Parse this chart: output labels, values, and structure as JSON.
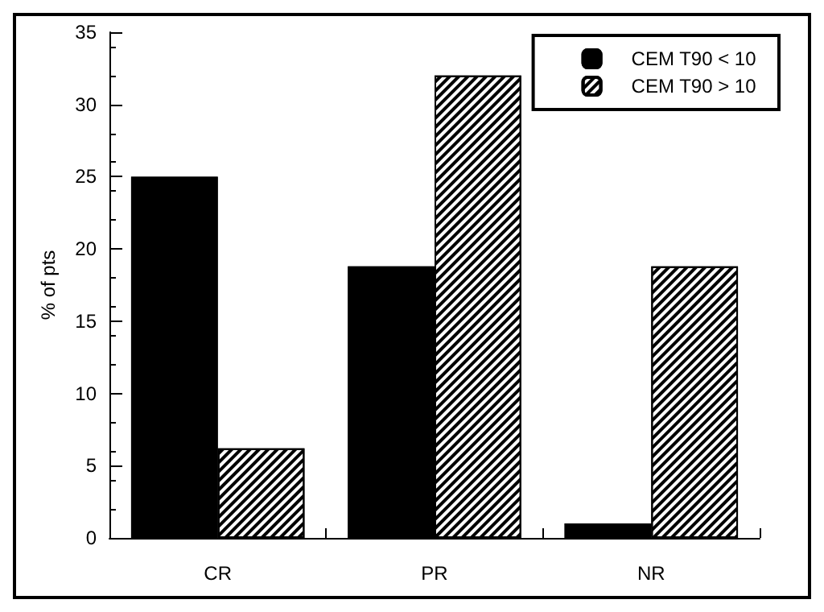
{
  "chart_data": {
    "type": "bar",
    "ylabel": "% of pts",
    "categories": [
      "CR",
      "PR",
      "NR"
    ],
    "series": [
      {
        "name": "CEM T90 < 10",
        "color": "#000000",
        "values": [
          25,
          18.8,
          1
        ]
      },
      {
        "name": "CEM T90 > 10",
        "color": "#ffffff",
        "values": [
          6.2,
          32,
          18.8
        ]
      }
    ],
    "ylim": [
      0,
      35
    ],
    "yticks": [
      0,
      5,
      10,
      15,
      20,
      25,
      30,
      35
    ],
    "grid": false,
    "legend": "top right"
  }
}
